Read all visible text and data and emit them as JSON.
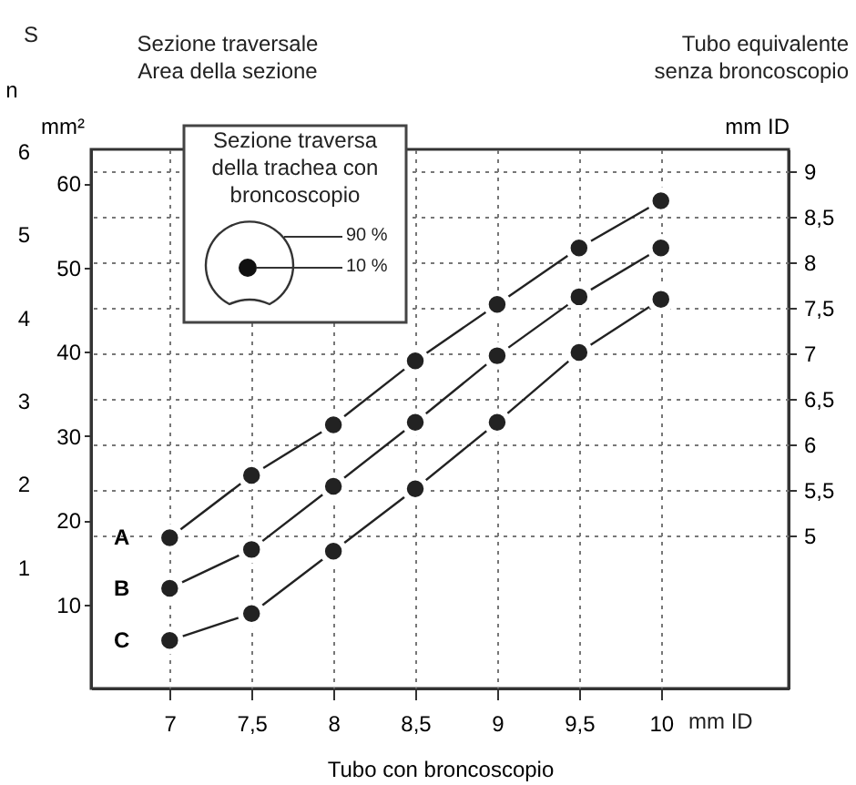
{
  "chart_data": {
    "type": "line",
    "xlabel": "Tubo con broncoscopio",
    "ylabel": "mm²",
    "y2label": "mm ID",
    "y3label": "n",
    "x": [
      7,
      7.5,
      8,
      8.5,
      9,
      9.5,
      10
    ],
    "xlim": [
      6.52,
      10.78
    ],
    "xticks": [
      7,
      {
        "value": 7.5,
        "label": "7,5"
      },
      8,
      {
        "value": 8.5,
        "label": "8,5"
      },
      9,
      {
        "value": 9.5,
        "label": "9,5"
      },
      10
    ],
    "ylim": [
      0,
      64
    ],
    "yticks": [
      10,
      20,
      30,
      40,
      50,
      60
    ],
    "y2lim": [
      3.32,
      9.24
    ],
    "y2ticks": [
      5,
      {
        "value": 5.5,
        "label": "5,5"
      },
      6,
      {
        "value": 6.5,
        "label": "6,5"
      },
      7,
      {
        "value": 7.5,
        "label": "7,5"
      },
      8,
      {
        "value": 8.5,
        "label": "8,5"
      },
      9
    ],
    "y3lim": [
      -0.46,
      6.02
    ],
    "y3ticks": [
      1,
      2,
      3,
      4,
      5,
      6
    ],
    "grid": true,
    "marker": "circle",
    "line_style": "solid",
    "series": [
      {
        "name": "A",
        "color": "#222222",
        "values": [
          17.9,
          25.3,
          31.3,
          38.9,
          45.6,
          52.3,
          57.9
        ]
      },
      {
        "name": "B",
        "color": "#222222",
        "values": [
          11.9,
          16.5,
          24.0,
          31.6,
          39.5,
          46.5,
          52.3
        ]
      },
      {
        "name": "C",
        "color": "#222222",
        "values": [
          5.7,
          8.9,
          16.3,
          23.7,
          31.6,
          39.9,
          46.2
        ]
      }
    ],
    "annotations": [
      "S",
      "Sezione traversale\nArea della sezione",
      "Tubo equivalente\nsenza broncoscopio",
      "mm ID",
      "Sezione traversa\ndella trachea con\nbroncoscopio",
      "90 %",
      "10 %"
    ]
  }
}
